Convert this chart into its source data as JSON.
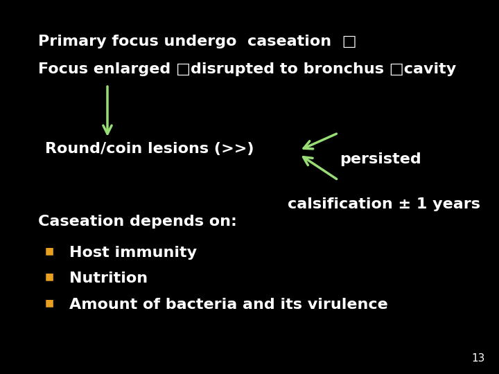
{
  "background_color": "#000000",
  "text_color_white": "#ffffff",
  "arrow_color": "#99dd77",
  "bullet_color": "#e8a020",
  "line1": "Primary focus undergo  caseation  □",
  "line2": "Focus enlarged □disrupted to bronchus □cavity",
  "round_coin": "Round/coin lesions (>>)",
  "persisted": "persisted",
  "calsification": "calsification ± 1 years",
  "caseation_depends": "Caseation depends on:",
  "bullet1": "Host immunity",
  "bullet2": "Nutrition",
  "bullet3": "Amount of bacteria and its virulence",
  "page_number": "13",
  "font_size_main": 16,
  "font_size_small": 11
}
